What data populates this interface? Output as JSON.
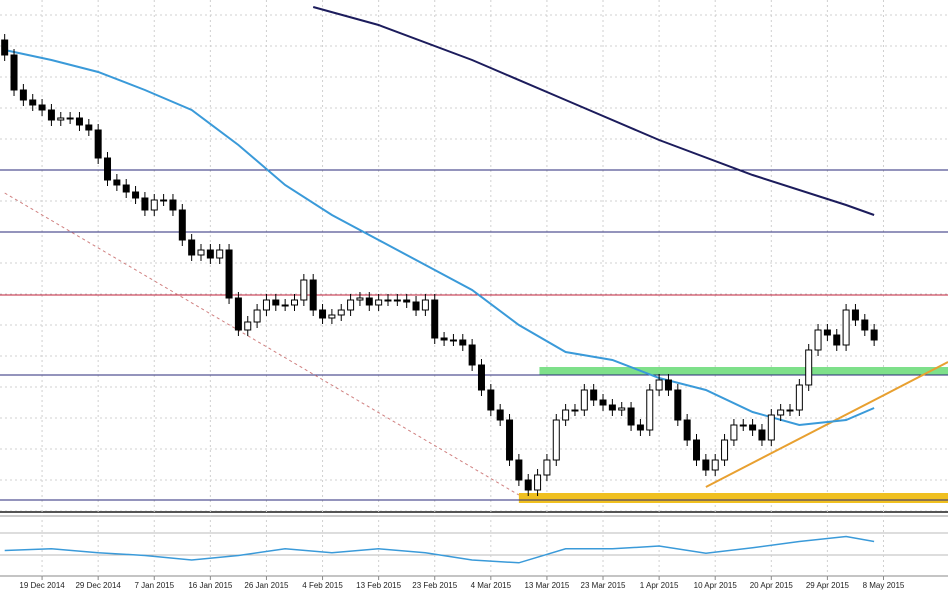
{
  "chart_data": {
    "type": "candlestick",
    "ylim": [
      0,
      512
    ],
    "xlim": [
      -0.5,
      100.9
    ],
    "grid": true,
    "up_color": "#ffffff",
    "down_color": "#000000",
    "open": [
      472,
      457,
      422,
      412,
      407,
      402,
      392,
      394,
      394,
      387,
      382,
      354,
      332,
      327,
      320,
      314,
      302,
      312,
      312,
      302,
      272,
      257,
      262,
      254,
      262,
      214,
      182,
      190,
      202,
      212,
      207,
      207,
      212,
      232,
      202,
      194,
      197,
      202,
      212,
      214,
      207,
      212,
      212,
      212,
      210,
      202,
      212,
      174,
      172,
      172,
      167,
      147,
      122,
      102,
      92,
      52,
      32,
      22,
      37,
      52,
      92,
      102,
      102,
      122,
      112,
      107,
      102,
      104,
      87,
      82,
      122,
      132,
      122,
      92,
      72,
      52,
      42,
      52,
      72,
      87,
      87,
      82,
      72,
      97,
      102,
      102,
      127,
      162,
      182,
      177,
      167,
      202,
      192,
      182
    ],
    "high": [
      478,
      463,
      428,
      418,
      413,
      408,
      400,
      400,
      400,
      393,
      388,
      360,
      338,
      333,
      326,
      320,
      318,
      318,
      318,
      308,
      278,
      268,
      268,
      268,
      268,
      220,
      196,
      208,
      218,
      218,
      213,
      218,
      238,
      238,
      208,
      203,
      208,
      218,
      220,
      220,
      218,
      218,
      218,
      218,
      216,
      218,
      218,
      180,
      178,
      178,
      173,
      153,
      128,
      108,
      98,
      58,
      38,
      43,
      58,
      98,
      108,
      108,
      128,
      128,
      118,
      113,
      110,
      110,
      93,
      128,
      138,
      138,
      128,
      98,
      78,
      58,
      58,
      78,
      93,
      93,
      93,
      88,
      103,
      108,
      108,
      133,
      168,
      188,
      188,
      183,
      208,
      208,
      198,
      188
    ],
    "low": [
      451,
      416,
      406,
      401,
      396,
      386,
      386,
      388,
      381,
      376,
      348,
      326,
      321,
      314,
      308,
      296,
      296,
      306,
      296,
      266,
      251,
      251,
      248,
      248,
      208,
      176,
      176,
      184,
      196,
      201,
      201,
      201,
      206,
      196,
      188,
      188,
      191,
      196,
      206,
      201,
      201,
      206,
      206,
      204,
      196,
      196,
      168,
      166,
      166,
      161,
      141,
      116,
      96,
      86,
      46,
      26,
      16,
      16,
      31,
      46,
      86,
      96,
      96,
      106,
      101,
      96,
      96,
      81,
      76,
      76,
      116,
      116,
      86,
      66,
      46,
      36,
      36,
      46,
      66,
      81,
      76,
      66,
      66,
      91,
      96,
      96,
      121,
      156,
      171,
      161,
      161,
      186,
      176,
      166
    ],
    "close": [
      457,
      422,
      412,
      407,
      402,
      392,
      394,
      394,
      387,
      382,
      354,
      332,
      327,
      320,
      314,
      302,
      312,
      312,
      302,
      272,
      257,
      262,
      254,
      262,
      214,
      182,
      190,
      202,
      212,
      207,
      207,
      212,
      232,
      202,
      194,
      197,
      202,
      212,
      214,
      207,
      212,
      212,
      212,
      210,
      202,
      212,
      174,
      172,
      172,
      167,
      147,
      122,
      102,
      92,
      52,
      32,
      22,
      37,
      52,
      92,
      102,
      102,
      122,
      112,
      107,
      102,
      104,
      87,
      82,
      122,
      132,
      122,
      92,
      72,
      52,
      42,
      52,
      72,
      87,
      87,
      82,
      72,
      97,
      102,
      102,
      127,
      162,
      182,
      177,
      167,
      202,
      192,
      182,
      172
    ],
    "xticks": [
      {
        "value": 4,
        "label": "19 Dec 2014"
      },
      {
        "value": 10,
        "label": "29 Dec 2014"
      },
      {
        "value": 16,
        "label": "7 Jan 2015"
      },
      {
        "value": 22,
        "label": "16 Jan 2015"
      },
      {
        "value": 28,
        "label": "26 Jan 2015"
      },
      {
        "value": 34,
        "label": "4 Feb 2015"
      },
      {
        "value": 40,
        "label": "13 Feb 2015"
      },
      {
        "value": 46,
        "label": "23 Feb 2015"
      },
      {
        "value": 52,
        "label": "4 Mar 2015"
      },
      {
        "value": 58,
        "label": "13 Mar 2015"
      },
      {
        "value": 64,
        "label": "23 Mar 2015"
      },
      {
        "value": 70,
        "label": "1 Apr 2015"
      },
      {
        "value": 76,
        "label": "10 Apr 2015"
      },
      {
        "value": 82,
        "label": "20 Apr 2015"
      },
      {
        "value": 88,
        "label": "29 Apr 2015"
      },
      {
        "value": 94,
        "label": "8 May 2015"
      }
    ],
    "lines": [
      {
        "color": "#3a9ad9",
        "x": [
          0,
          5,
          10,
          15,
          20,
          25,
          30,
          35,
          40,
          45,
          50,
          55,
          60,
          65,
          70,
          75,
          80,
          85,
          90,
          93
        ],
        "values": [
          462,
          452,
          440,
          422,
          402,
          367,
          327,
          297,
          272,
          247,
          222,
          187,
          160,
          152,
          134,
          122,
          100,
          87,
          92,
          104
        ]
      },
      {
        "color": "#1c1c5c",
        "x": [
          33,
          40,
          50,
          60,
          70,
          80,
          90,
          93
        ],
        "values": [
          505,
          487,
          452,
          412,
          372,
          337,
          307,
          297
        ]
      }
    ],
    "trendlines": [
      {
        "color": "#d08080",
        "dashed": true,
        "x": [
          0,
          55
        ],
        "values": [
          319,
          17
        ]
      },
      {
        "color": "#e8a030",
        "dashed": false,
        "x": [
          75,
          100.9
        ],
        "values": [
          25,
          150
        ]
      }
    ],
    "levels": [
      {
        "color": "#2a2a7a",
        "value": 342
      },
      {
        "color": "#2a2a7a",
        "value": 280
      },
      {
        "color": "#c0203a",
        "value": 217
      },
      {
        "color": "#2a2a7a",
        "value": 137
      },
      {
        "color": "#2a2a7a",
        "value": 12
      }
    ],
    "zones": [
      {
        "color": "#7ee08a",
        "x": [
          57.2,
          100.9
        ],
        "values": [
          137,
          145
        ]
      },
      {
        "color": "#f0c020",
        "x": [
          55,
          100.9
        ],
        "values": [
          9,
          19
        ]
      }
    ],
    "oscillator": {
      "color": "#3a9ad9",
      "ylim": [
        0,
        100
      ],
      "x": [
        0,
        5,
        10,
        15,
        20,
        25,
        30,
        35,
        40,
        45,
        50,
        55,
        60,
        65,
        70,
        75,
        80,
        85,
        90,
        93
      ],
      "values": [
        42,
        45,
        38,
        33,
        25,
        33,
        45,
        38,
        45,
        38,
        25,
        20,
        45,
        45,
        50,
        37,
        47,
        58,
        67,
        58
      ]
    }
  }
}
